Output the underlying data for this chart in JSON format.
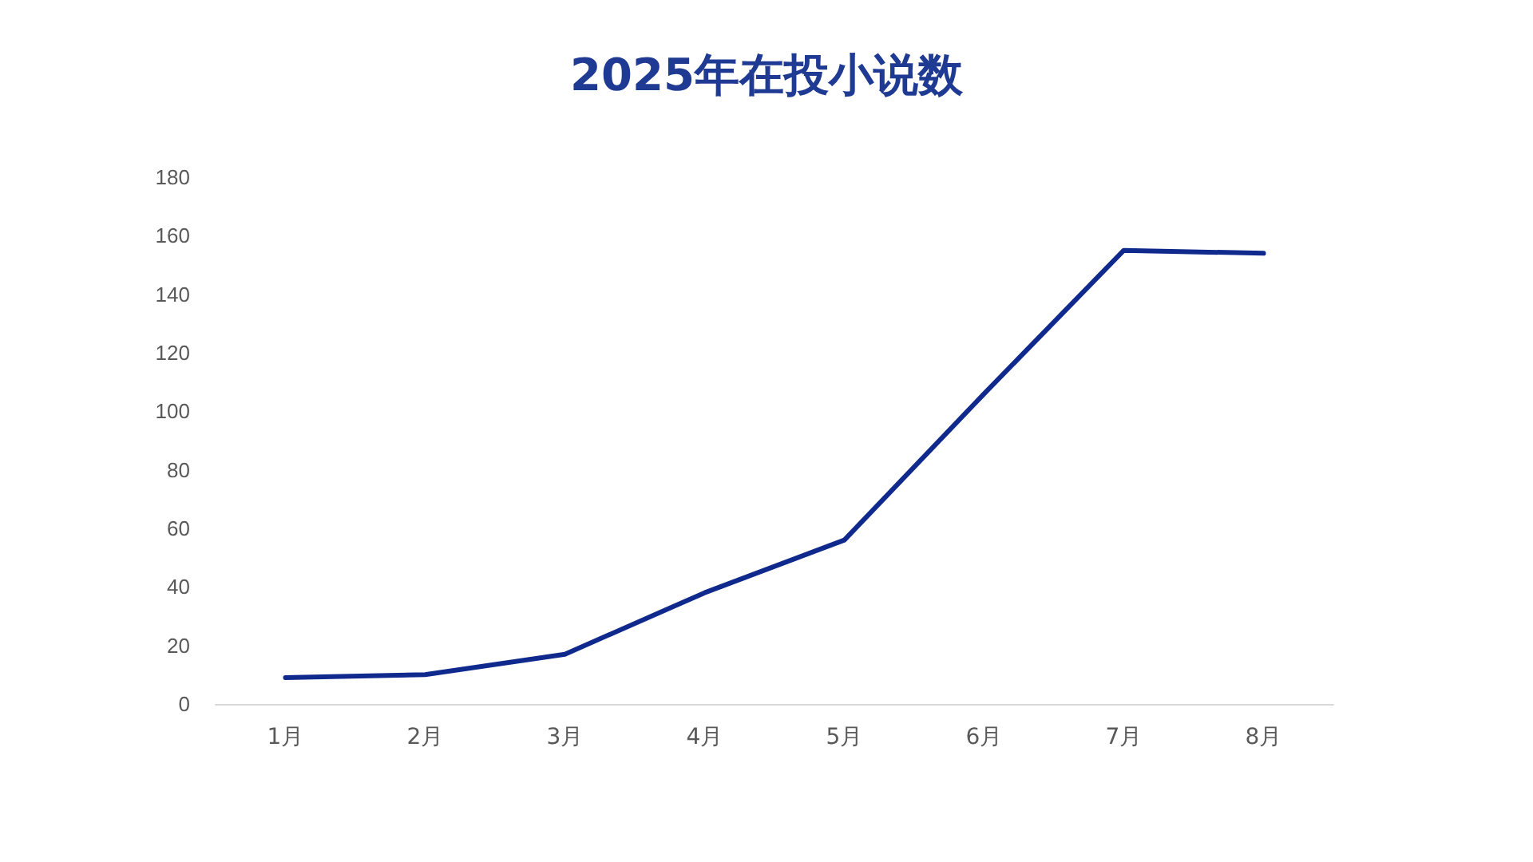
{
  "chart_data": {
    "type": "line",
    "title": "2025年在投小说数",
    "categories": [
      "1月",
      "2月",
      "3月",
      "4月",
      "5月",
      "6月",
      "7月",
      "8月"
    ],
    "series": [
      {
        "color": "#0f2a8c",
        "values": [
          9,
          10,
          17,
          38,
          56,
          106,
          155,
          154
        ]
      }
    ],
    "ylim": [
      0,
      180
    ],
    "yticks": [
      0,
      20,
      40,
      60,
      80,
      100,
      120,
      140,
      160,
      180
    ],
    "grid": false,
    "marker": "none",
    "line_style": "solid"
  }
}
